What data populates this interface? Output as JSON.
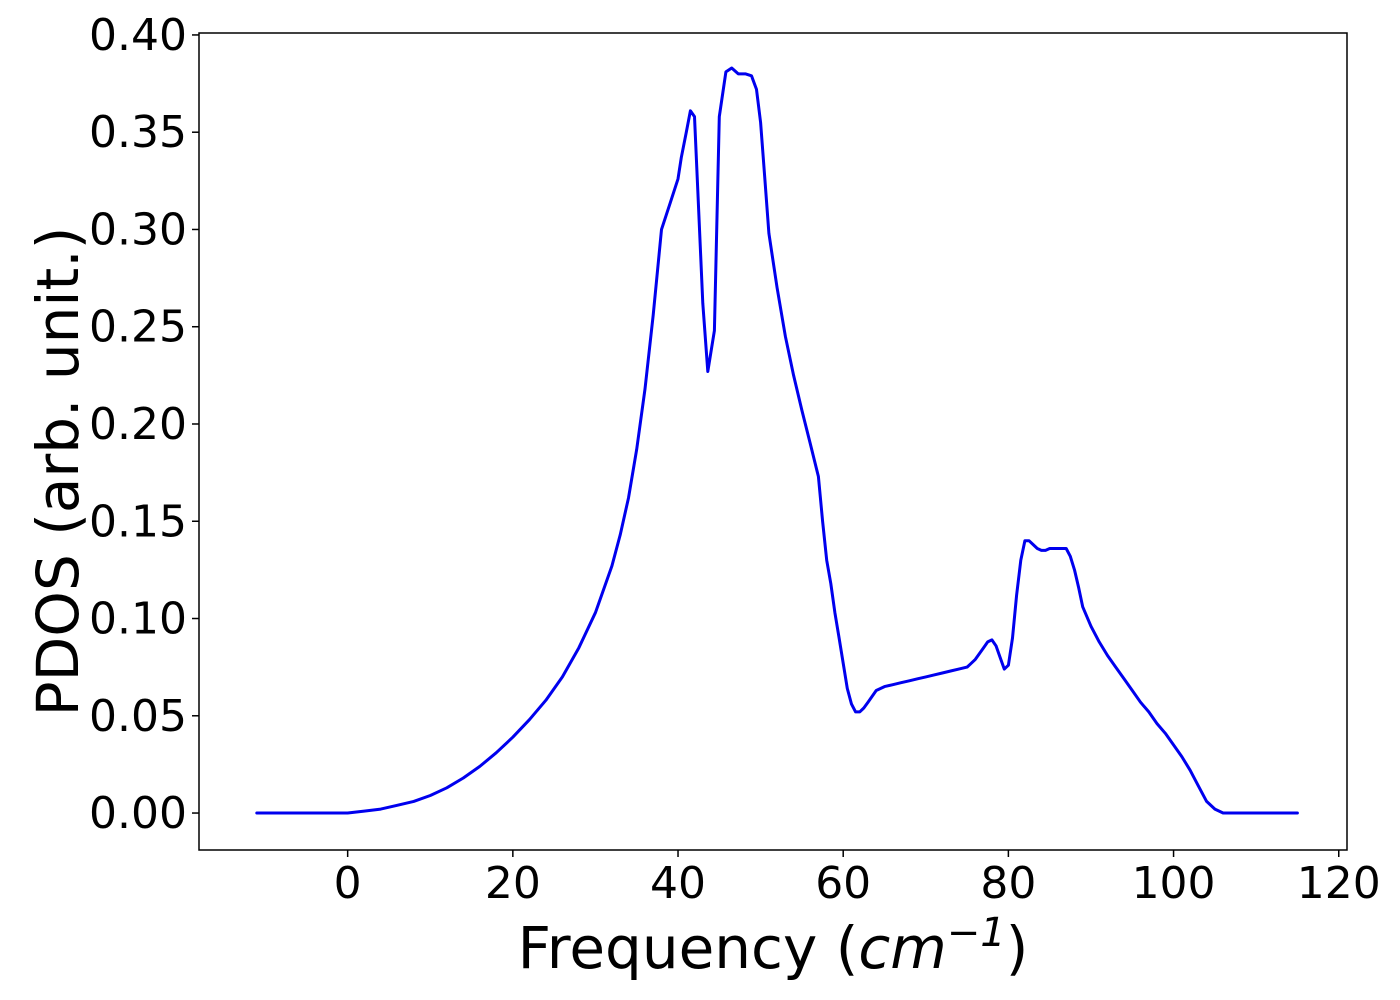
{
  "chart_data": {
    "type": "line",
    "title": "",
    "xlabel": {
      "prefix": "Frequency (",
      "unit": "cm",
      "exponent": "−1",
      "suffix": ")"
    },
    "ylabel": "PDOS (arb. unit.)",
    "xlim": [
      -18,
      121
    ],
    "ylim": [
      -0.019,
      0.401
    ],
    "xticks": [
      0,
      20,
      40,
      60,
      80,
      100,
      120
    ],
    "xtick_labels": [
      "0",
      "20",
      "40",
      "60",
      "80",
      "100",
      "120"
    ],
    "yticks": [
      0.0,
      0.05,
      0.1,
      0.15,
      0.2,
      0.25,
      0.3,
      0.35,
      0.4
    ],
    "ytick_labels": [
      "0.00",
      "0.05",
      "0.10",
      "0.15",
      "0.20",
      "0.25",
      "0.30",
      "0.35",
      "0.40"
    ],
    "grid": false,
    "legend": "none",
    "series": [
      {
        "color": "#0000ee",
        "x": [
          -11,
          -5,
          0,
          2,
          4,
          6,
          8,
          10,
          12,
          14,
          16,
          18,
          20,
          22,
          24,
          26,
          28,
          30,
          32,
          33,
          34,
          35,
          36,
          37,
          38,
          39,
          40,
          40.4,
          41,
          41.5,
          42,
          42.4,
          43,
          43.6,
          44.4,
          45,
          45.8,
          46.5,
          47.3,
          48.2,
          48.9,
          49.5,
          50,
          50.5,
          51,
          52,
          53,
          54,
          55,
          56,
          57,
          57.5,
          58,
          58.5,
          59,
          59.5,
          60,
          60.5,
          61,
          61.5,
          62,
          62.5,
          63,
          64,
          65,
          66,
          67,
          68,
          69,
          70,
          71,
          72,
          73,
          74,
          75,
          75.5,
          76,
          76.5,
          77,
          77.5,
          78,
          78.5,
          79,
          79.5,
          80,
          80.5,
          81,
          81.5,
          82,
          82.5,
          83,
          83.5,
          84,
          84.5,
          85,
          86,
          87,
          87.5,
          88,
          88.5,
          89,
          90,
          91,
          92,
          93,
          94,
          95,
          96,
          97,
          98,
          99,
          100,
          101,
          102,
          103,
          104,
          105,
          106,
          107,
          108,
          110,
          115
        ],
        "y": [
          0.0,
          0.0,
          0.0,
          0.001,
          0.002,
          0.004,
          0.006,
          0.009,
          0.013,
          0.018,
          0.024,
          0.031,
          0.039,
          0.048,
          0.058,
          0.07,
          0.085,
          0.103,
          0.127,
          0.143,
          0.162,
          0.187,
          0.218,
          0.256,
          0.3,
          0.313,
          0.326,
          0.337,
          0.35,
          0.361,
          0.358,
          0.32,
          0.262,
          0.227,
          0.248,
          0.358,
          0.381,
          0.383,
          0.38,
          0.38,
          0.379,
          0.372,
          0.355,
          0.327,
          0.298,
          0.27,
          0.245,
          0.225,
          0.207,
          0.19,
          0.173,
          0.15,
          0.13,
          0.118,
          0.103,
          0.09,
          0.077,
          0.064,
          0.056,
          0.052,
          0.052,
          0.054,
          0.057,
          0.063,
          0.065,
          0.066,
          0.067,
          0.068,
          0.069,
          0.07,
          0.071,
          0.072,
          0.073,
          0.074,
          0.075,
          0.077,
          0.079,
          0.082,
          0.085,
          0.088,
          0.089,
          0.086,
          0.08,
          0.074,
          0.076,
          0.09,
          0.112,
          0.13,
          0.14,
          0.14,
          0.138,
          0.136,
          0.135,
          0.135,
          0.136,
          0.136,
          0.136,
          0.132,
          0.125,
          0.116,
          0.106,
          0.096,
          0.088,
          0.081,
          0.075,
          0.069,
          0.063,
          0.057,
          0.052,
          0.046,
          0.041,
          0.035,
          0.029,
          0.022,
          0.014,
          0.006,
          0.002,
          0.0,
          0.0,
          0.0,
          0.0,
          0.0
        ]
      }
    ]
  }
}
